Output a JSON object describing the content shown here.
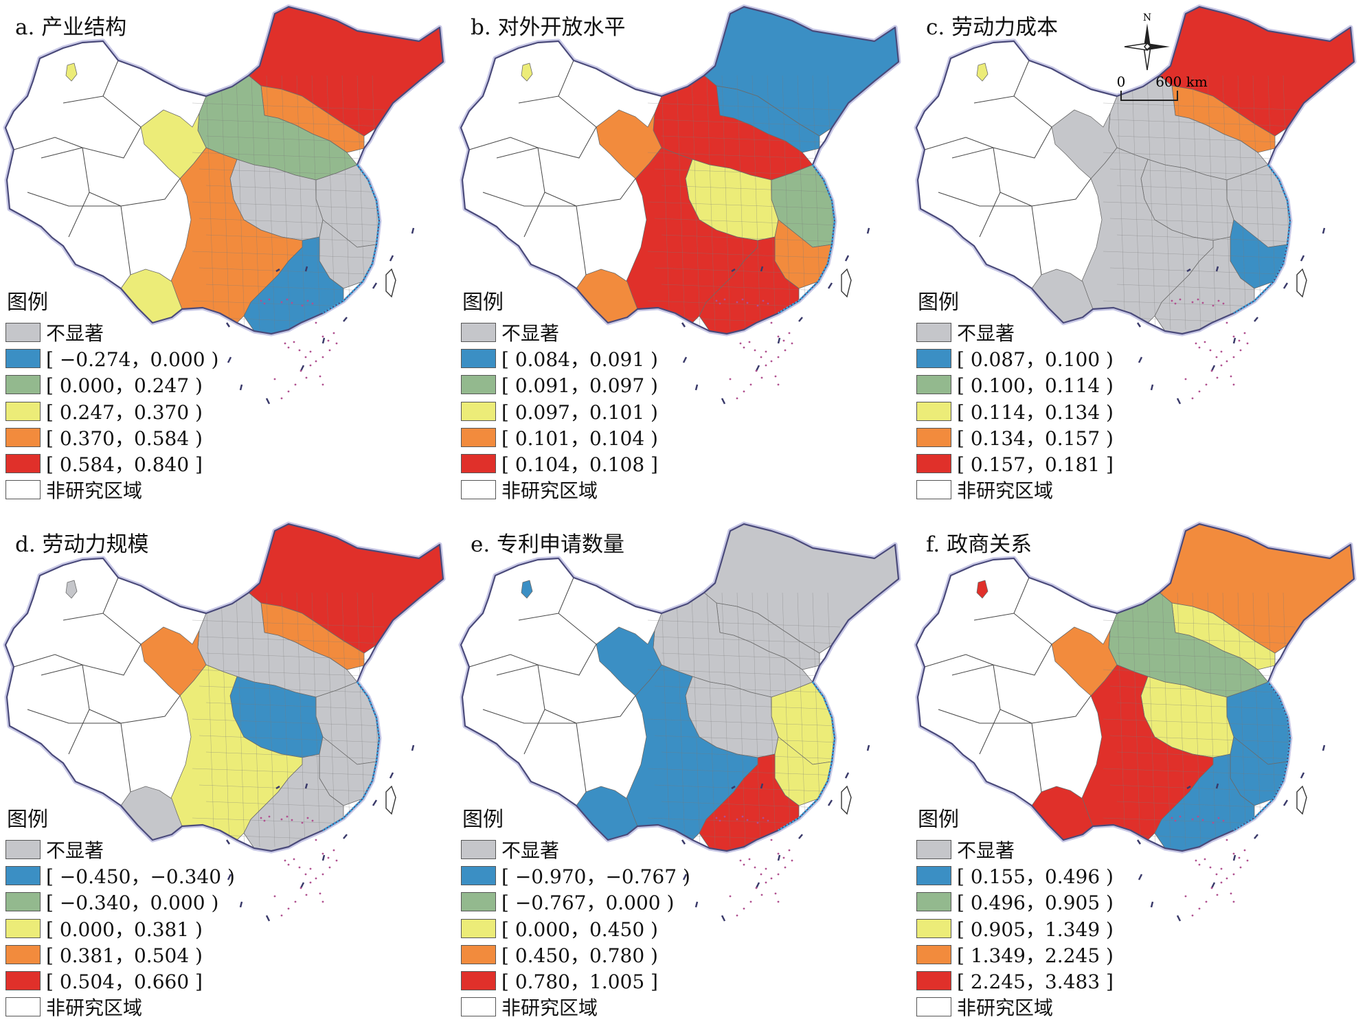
{
  "panels": [
    {
      "title": "a. 产业结构",
      "legend": {
        "title": "图例",
        "items": [
          {
            "label": "不显著",
            "color": "#c5c6ca"
          },
          {
            "label": "[ −0.274，0.000 )",
            "color": "#3b8fc4"
          },
          {
            "label": "[ 0.000，0.247 )",
            "color": "#93b98e"
          },
          {
            "label": "[ 0.247，0.370 )",
            "color": "#ecec78"
          },
          {
            "label": "[ 0.370，0.584 )",
            "color": "#f28b3d"
          },
          {
            "label": "[ 0.584，0.840 ]",
            "color": "#e0302a"
          },
          {
            "label": "非研究区域",
            "color": "#ffffff"
          }
        ]
      }
    },
    {
      "title": "b. 对外开放水平",
      "legend": {
        "title": "图例",
        "items": [
          {
            "label": "不显著",
            "color": "#c5c6ca"
          },
          {
            "label": "[ 0.084，0.091 )",
            "color": "#3b8fc4"
          },
          {
            "label": "[ 0.091，0.097 )",
            "color": "#93b98e"
          },
          {
            "label": "[ 0.097，0.101 )",
            "color": "#ecec78"
          },
          {
            "label": "[ 0.101，0.104 )",
            "color": "#f28b3d"
          },
          {
            "label": "[ 0.104，0.108 ]",
            "color": "#e0302a"
          },
          {
            "label": "非研究区域",
            "color": "#ffffff"
          }
        ]
      }
    },
    {
      "title": "c. 劳动力成本",
      "legend": {
        "title": "图例",
        "items": [
          {
            "label": "不显著",
            "color": "#c5c6ca"
          },
          {
            "label": "[ 0.087，0.100 )",
            "color": "#3b8fc4"
          },
          {
            "label": "[ 0.100，0.114 )",
            "color": "#93b98e"
          },
          {
            "label": "[ 0.114，0.134 )",
            "color": "#ecec78"
          },
          {
            "label": "[ 0.134，0.157 )",
            "color": "#f28b3d"
          },
          {
            "label": "[ 0.157，0.181 ]",
            "color": "#e0302a"
          },
          {
            "label": "非研究区域",
            "color": "#ffffff"
          }
        ]
      }
    },
    {
      "title": "d. 劳动力规模",
      "legend": {
        "title": "图例",
        "items": [
          {
            "label": "不显著",
            "color": "#c5c6ca"
          },
          {
            "label": "[ −0.450，−0.340 )",
            "color": "#3b8fc4"
          },
          {
            "label": "[ −0.340，0.000 )",
            "color": "#93b98e"
          },
          {
            "label": "[ 0.000，0.381 )",
            "color": "#ecec78"
          },
          {
            "label": "[ 0.381，0.504 )",
            "color": "#f28b3d"
          },
          {
            "label": "[ 0.504，0.660 ]",
            "color": "#e0302a"
          },
          {
            "label": "非研究区域",
            "color": "#ffffff"
          }
        ]
      }
    },
    {
      "title": "e. 专利申请数量",
      "legend": {
        "title": "图例",
        "items": [
          {
            "label": "不显著",
            "color": "#c5c6ca"
          },
          {
            "label": "[ −0.970，−0.767 )",
            "color": "#3b8fc4"
          },
          {
            "label": "[ −0.767，0.000 )",
            "color": "#93b98e"
          },
          {
            "label": "[ 0.000，0.450 )",
            "color": "#ecec78"
          },
          {
            "label": "[ 0.450，0.780 )",
            "color": "#f28b3d"
          },
          {
            "label": "[ 0.780，1.005 ]",
            "color": "#e0302a"
          },
          {
            "label": "非研究区域",
            "color": "#ffffff"
          }
        ]
      }
    },
    {
      "title": "f. 政商关系",
      "legend": {
        "title": "图例",
        "items": [
          {
            "label": "不显著",
            "color": "#c5c6ca"
          },
          {
            "label": "[ 0.155，0.496 )",
            "color": "#3b8fc4"
          },
          {
            "label": "[ 0.496，0.905 )",
            "color": "#93b98e"
          },
          {
            "label": "[ 0.905，1.349 )",
            "color": "#ecec78"
          },
          {
            "label": "[ 1.349，2.245 )",
            "color": "#f28b3d"
          },
          {
            "label": "[ 2.245，3.483 ]",
            "color": "#e0302a"
          },
          {
            "label": "非研究区域",
            "color": "#ffffff"
          }
        ]
      }
    }
  ],
  "north_arrow": {
    "label": "N"
  },
  "scale_bar": {
    "start_label": "0",
    "end_label": "600 km"
  },
  "colors": {
    "not_significant": "#c5c6ca",
    "class1": "#3b8fc4",
    "class2": "#93b98e",
    "class3": "#ecec78",
    "class4": "#f28b3d",
    "class5": "#e0302a",
    "outline": "#4a4a7a",
    "coast": "#3fa0d8",
    "islands": "#b0508f"
  }
}
